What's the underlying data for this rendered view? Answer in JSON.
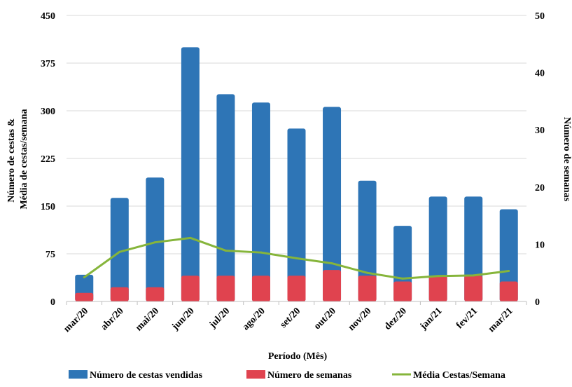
{
  "chart_data": {
    "type": "bar",
    "categories": [
      "mar/20",
      "abr/20",
      "mai/20",
      "jun/20",
      "jul/20",
      "ago/20",
      "set/20",
      "out/20",
      "nov/20",
      "dez/20",
      "jan/21",
      "fev/21",
      "mar/21"
    ],
    "series": [
      {
        "name": "Número de cestas vendidas",
        "kind": "bar",
        "axis": "left",
        "color": "#2e75b6",
        "values": [
          42,
          163,
          195,
          400,
          326,
          313,
          272,
          306,
          190,
          119,
          165,
          165,
          145
        ]
      },
      {
        "name": "Número de semanas",
        "kind": "bar",
        "axis": "right",
        "color": "#e0434f",
        "values": [
          1.5,
          2.5,
          2.5,
          4.5,
          4.5,
          4.5,
          4.5,
          5.5,
          4.5,
          3.5,
          4.5,
          4.5,
          3.5
        ]
      },
      {
        "name": "Média Cestas/Semana",
        "kind": "line",
        "axis": "left",
        "color": "#86b53b",
        "values": [
          38,
          78,
          93,
          100,
          80,
          77,
          68,
          60,
          45,
          36,
          40,
          41,
          48
        ]
      }
    ],
    "ylabel_left": [
      "Número de cestas &",
      "Média de cestas/semana"
    ],
    "ylabel_right": "Número de semanas",
    "xlabel": "Período (Mês)",
    "ylim_left": [
      0,
      450
    ],
    "yticks_left": [
      0,
      75,
      150,
      225,
      300,
      375,
      450
    ],
    "ylim_right": [
      0,
      50
    ],
    "yticks_right": [
      0,
      10,
      20,
      30,
      40,
      50
    ],
    "grid": true,
    "legend_position": "bottom"
  }
}
